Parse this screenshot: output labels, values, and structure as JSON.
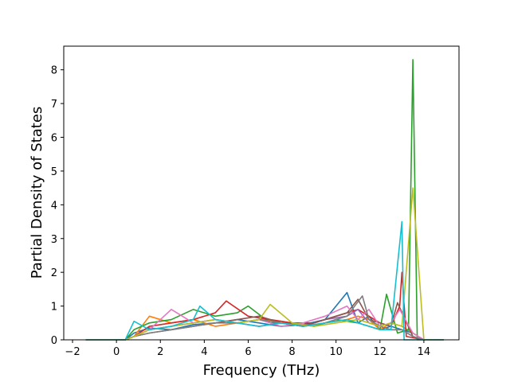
{
  "chart_data": {
    "type": "line",
    "title": "",
    "xlabel": "Frequency (THz)",
    "ylabel": "Partial Density of States",
    "xlim": [
      -2.4,
      15.6
    ],
    "ylim": [
      0,
      8.7
    ],
    "xticks": [
      -2,
      0,
      2,
      4,
      6,
      8,
      10,
      12,
      14
    ],
    "yticks": [
      0,
      1,
      2,
      3,
      4,
      5,
      6,
      7,
      8
    ],
    "xtick_labels": [
      "−2",
      "0",
      "2",
      "4",
      "6",
      "8",
      "10",
      "12",
      "14"
    ],
    "ytick_labels": [
      "0",
      "1",
      "2",
      "3",
      "4",
      "5",
      "6",
      "7",
      "8"
    ],
    "grid": false,
    "legend": "none",
    "colors": [
      "#1f77b4",
      "#ff7f0e",
      "#2ca02c",
      "#d62728",
      "#9467bd",
      "#8c564b",
      "#e377c2",
      "#7f7f7f",
      "#bcbd22",
      "#17becf"
    ],
    "series": [
      {
        "x": [
          -1.4,
          0.4,
          0.8,
          1.5,
          2.5,
          3.5,
          4.5,
          5.5,
          6.5,
          7.5,
          8.5,
          9.5,
          10.5,
          11.0,
          11.5,
          12.0,
          12.5,
          13.0,
          13.5,
          14.0,
          14.9
        ],
        "y": [
          0,
          0,
          0.2,
          0.35,
          0.3,
          0.45,
          0.5,
          0.6,
          0.5,
          0.4,
          0.45,
          0.6,
          1.4,
          0.5,
          0.7,
          0.3,
          0.4,
          0.3,
          0.2,
          0,
          0
        ]
      },
      {
        "x": [
          -1.4,
          0.4,
          0.8,
          1.5,
          2.5,
          3.5,
          4.5,
          5.5,
          6.5,
          7.5,
          8.5,
          9.5,
          10.5,
          11.0,
          11.5,
          12.0,
          12.5,
          13.0,
          13.5,
          14.0,
          14.9
        ],
        "y": [
          0,
          0,
          0.1,
          0.7,
          0.5,
          0.6,
          0.4,
          0.5,
          0.6,
          0.55,
          0.4,
          0.5,
          0.6,
          0.7,
          0.6,
          0.3,
          0.5,
          0.4,
          0.2,
          0,
          0
        ]
      },
      {
        "x": [
          -1.4,
          0.4,
          0.8,
          1.5,
          2.5,
          3.5,
          4.5,
          5.5,
          6.0,
          7.0,
          8.0,
          9.0,
          10.0,
          11.0,
          12.0,
          12.3,
          12.8,
          13.3,
          13.5,
          13.7,
          14.9
        ],
        "y": [
          0,
          0,
          0.3,
          0.5,
          0.6,
          0.9,
          0.7,
          0.8,
          1.0,
          0.5,
          0.5,
          0.4,
          0.6,
          0.5,
          0.3,
          1.35,
          0.2,
          0.3,
          8.3,
          0,
          0
        ]
      },
      {
        "x": [
          -1.4,
          0.4,
          0.8,
          1.5,
          2.5,
          3.5,
          4.5,
          5.0,
          6.0,
          7.0,
          8.0,
          9.0,
          10.0,
          11.0,
          12.0,
          12.5,
          12.9,
          13.0,
          13.2,
          14.0,
          14.9
        ],
        "y": [
          0,
          0,
          0.1,
          0.4,
          0.5,
          0.6,
          0.8,
          1.15,
          0.7,
          0.6,
          0.5,
          0.5,
          0.7,
          0.9,
          0.5,
          0.4,
          1.0,
          2.0,
          0.1,
          0,
          0
        ]
      },
      {
        "x": [
          -1.4,
          0.4,
          0.8,
          1.5,
          2.5,
          3.5,
          4.5,
          5.5,
          6.5,
          7.5,
          8.5,
          9.5,
          10.5,
          11.0,
          11.5,
          12.0,
          12.5,
          13.0,
          13.5,
          14.0,
          14.9
        ],
        "y": [
          0,
          0,
          0.1,
          0.3,
          0.4,
          0.5,
          0.6,
          0.5,
          0.4,
          0.5,
          0.4,
          0.6,
          0.7,
          0.9,
          0.5,
          0.4,
          0.3,
          0.3,
          0.1,
          0,
          0
        ]
      },
      {
        "x": [
          -1.4,
          0.4,
          0.8,
          1.5,
          2.5,
          3.5,
          4.5,
          5.5,
          6.5,
          7.5,
          8.5,
          9.5,
          10.5,
          11.0,
          11.5,
          12.0,
          12.5,
          12.8,
          13.5,
          14.0,
          14.9
        ],
        "y": [
          0,
          0,
          0.1,
          0.2,
          0.3,
          0.4,
          0.5,
          0.6,
          0.7,
          0.5,
          0.4,
          0.6,
          0.8,
          1.2,
          0.6,
          0.5,
          0.4,
          1.1,
          0.1,
          0,
          0
        ]
      },
      {
        "x": [
          -1.4,
          0.4,
          0.8,
          1.5,
          2.5,
          3.5,
          4.5,
          5.5,
          6.5,
          7.5,
          8.5,
          9.5,
          10.5,
          11.0,
          11.5,
          12.0,
          12.5,
          12.9,
          13.5,
          14.0,
          14.9
        ],
        "y": [
          0,
          0,
          0.1,
          0.3,
          0.9,
          0.5,
          0.6,
          0.5,
          0.6,
          0.4,
          0.5,
          0.7,
          1.0,
          0.6,
          0.9,
          0.4,
          0.5,
          0.9,
          0.2,
          0,
          0
        ]
      },
      {
        "x": [
          -1.4,
          0.4,
          0.8,
          1.5,
          2.5,
          3.5,
          4.5,
          5.5,
          6.5,
          7.5,
          8.5,
          9.5,
          10.5,
          11.2,
          11.5,
          12.0,
          12.5,
          13.0,
          13.5,
          14.0,
          14.9
        ],
        "y": [
          0,
          0,
          0.1,
          0.2,
          0.3,
          0.4,
          0.5,
          0.5,
          0.6,
          0.5,
          0.4,
          0.5,
          0.7,
          1.3,
          0.6,
          0.4,
          0.3,
          0.3,
          0.1,
          0,
          0
        ]
      },
      {
        "x": [
          -1.4,
          0.4,
          0.8,
          1.5,
          2.5,
          3.5,
          4.5,
          5.5,
          6.5,
          7.0,
          8.0,
          9.0,
          10.0,
          11.0,
          11.5,
          12.0,
          12.5,
          13.0,
          13.5,
          14.0,
          14.9
        ],
        "y": [
          0,
          0,
          0.1,
          0.3,
          0.4,
          0.5,
          0.6,
          0.5,
          0.6,
          1.05,
          0.5,
          0.4,
          0.5,
          0.6,
          0.5,
          0.4,
          0.5,
          0.4,
          4.5,
          0,
          0
        ]
      },
      {
        "x": [
          -1.4,
          0.4,
          0.8,
          1.5,
          2.5,
          3.5,
          3.8,
          4.5,
          5.5,
          6.5,
          7.5,
          8.5,
          9.5,
          10.5,
          11.0,
          11.5,
          12.0,
          12.5,
          13.0,
          13.1,
          14.9
        ],
        "y": [
          0,
          0,
          0.55,
          0.3,
          0.4,
          0.6,
          1.0,
          0.6,
          0.5,
          0.4,
          0.5,
          0.4,
          0.5,
          0.6,
          0.5,
          0.4,
          0.3,
          0.3,
          3.5,
          0,
          0
        ]
      }
    ]
  }
}
